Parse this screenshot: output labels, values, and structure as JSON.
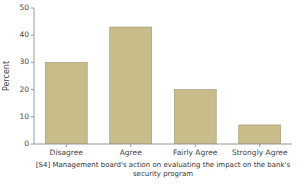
{
  "chart_data": {
    "type": "bar",
    "categories": [
      "Disagree",
      "Agree",
      "Fairly Agree",
      "Strongly Agree"
    ],
    "values": [
      30,
      43,
      20,
      7
    ],
    "color": "#C8BC8A",
    "ylabel": "Percent",
    "xlabel": "[S4] Management board's action on evaluating the impact on the bank's\nsecurity program",
    "ylim": [
      0,
      50
    ],
    "yticks": [
      0,
      10,
      20,
      30,
      40,
      50
    ],
    "grid": false
  }
}
